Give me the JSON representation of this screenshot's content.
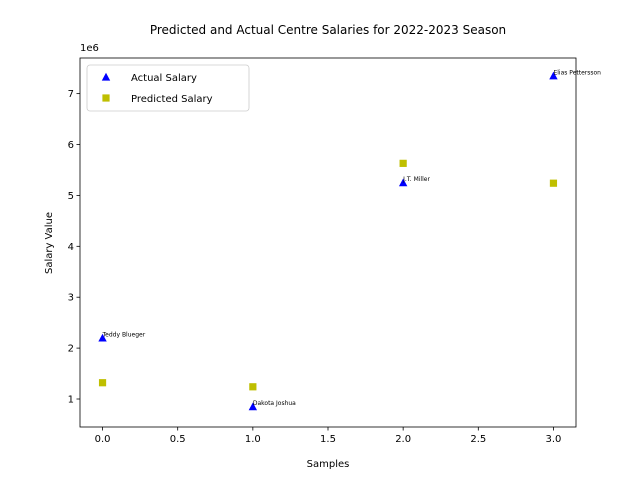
{
  "chart_data": {
    "type": "scatter",
    "title": "Predicted and Actual Centre Salaries for 2022-2023 Season",
    "xlabel": "Samples",
    "ylabel": "Salary Value",
    "y_offset_label": "1e6",
    "xlim": [
      -0.15,
      3.15
    ],
    "ylim": [
      0.45,
      7.7
    ],
    "x_ticks": [
      0.0,
      0.5,
      1.0,
      1.5,
      2.0,
      2.5,
      3.0
    ],
    "x_tick_labels": [
      "0.0",
      "0.5",
      "1.0",
      "1.5",
      "2.0",
      "2.5",
      "3.0"
    ],
    "y_ticks": [
      1,
      2,
      3,
      4,
      5,
      6,
      7
    ],
    "y_tick_labels": [
      "1",
      "2",
      "3",
      "4",
      "5",
      "6",
      "7"
    ],
    "legend_position": "top-left",
    "grid": false,
    "series": [
      {
        "name": "Actual Salary",
        "marker": "triangle",
        "color": "#0000ff",
        "x": [
          0,
          1,
          2,
          3
        ],
        "y": [
          2.2,
          0.85,
          5.25,
          7.35
        ]
      },
      {
        "name": "Predicted Salary",
        "marker": "square",
        "color": "#bfbf00",
        "x": [
          0,
          1,
          2,
          3
        ],
        "y": [
          1.32,
          1.24,
          5.63,
          5.24
        ]
      }
    ],
    "annotations": [
      {
        "text": "Teddy Blueger",
        "x": 0,
        "y": 2.2
      },
      {
        "text": "Dakota Joshua",
        "x": 1,
        "y": 0.85
      },
      {
        "text": "J.T. Miller",
        "x": 2,
        "y": 5.25
      },
      {
        "text": "Elias Pettersson",
        "x": 3,
        "y": 7.35
      }
    ]
  }
}
